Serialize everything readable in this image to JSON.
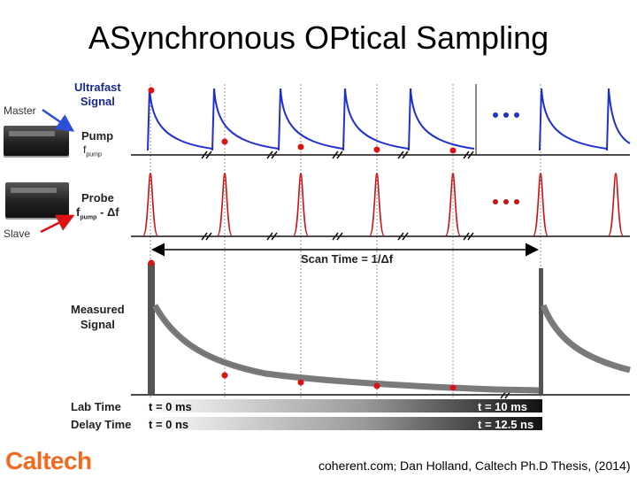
{
  "title": "ASynchronous OPtical Sampling",
  "labels": {
    "master": "Master",
    "slave": "Slave",
    "ultrafast_line1": "Ultrafast",
    "ultrafast_line2": "Signal",
    "pump": "Pump",
    "f_pump_main": "f",
    "f_pump_sub": "pump",
    "probe": "Probe",
    "f_probe_main": "f",
    "f_probe_sub": "pump",
    "f_probe_suffix": " - Δf",
    "scan_time": "Scan Time = 1/Δf",
    "measured_line1": "Measured",
    "measured_line2": "Signal",
    "lab_time": "Lab Time",
    "delay_time": "Delay Time",
    "lab_start": "t = 0 ms",
    "lab_end": "t = 10 ms",
    "delay_start": "t = 0 ns",
    "delay_end": "t = 12.5 ns"
  },
  "footer": {
    "logo": "Caltech",
    "credit_a": "coherent.com",
    "credit_b": ";",
    "credit_c": " Dan Holland, Caltech Ph.D Thesis, (2014)"
  },
  "colors": {
    "pump_pulse": "#1f2fd0",
    "probe_pulse": "#cc1111",
    "sample_dot": "#dd1111",
    "measured_trace": "#777777",
    "logo": "#f26a21",
    "master_arrow": "#2b4fd8",
    "slave_arrow": "#dd1111"
  },
  "icons": [
    "pump-laser-device-icon",
    "probe-laser-device-icon",
    "master-arrow-icon",
    "slave-arrow-icon",
    "ellipsis-dots-icon",
    "axis-break-icon"
  ]
}
